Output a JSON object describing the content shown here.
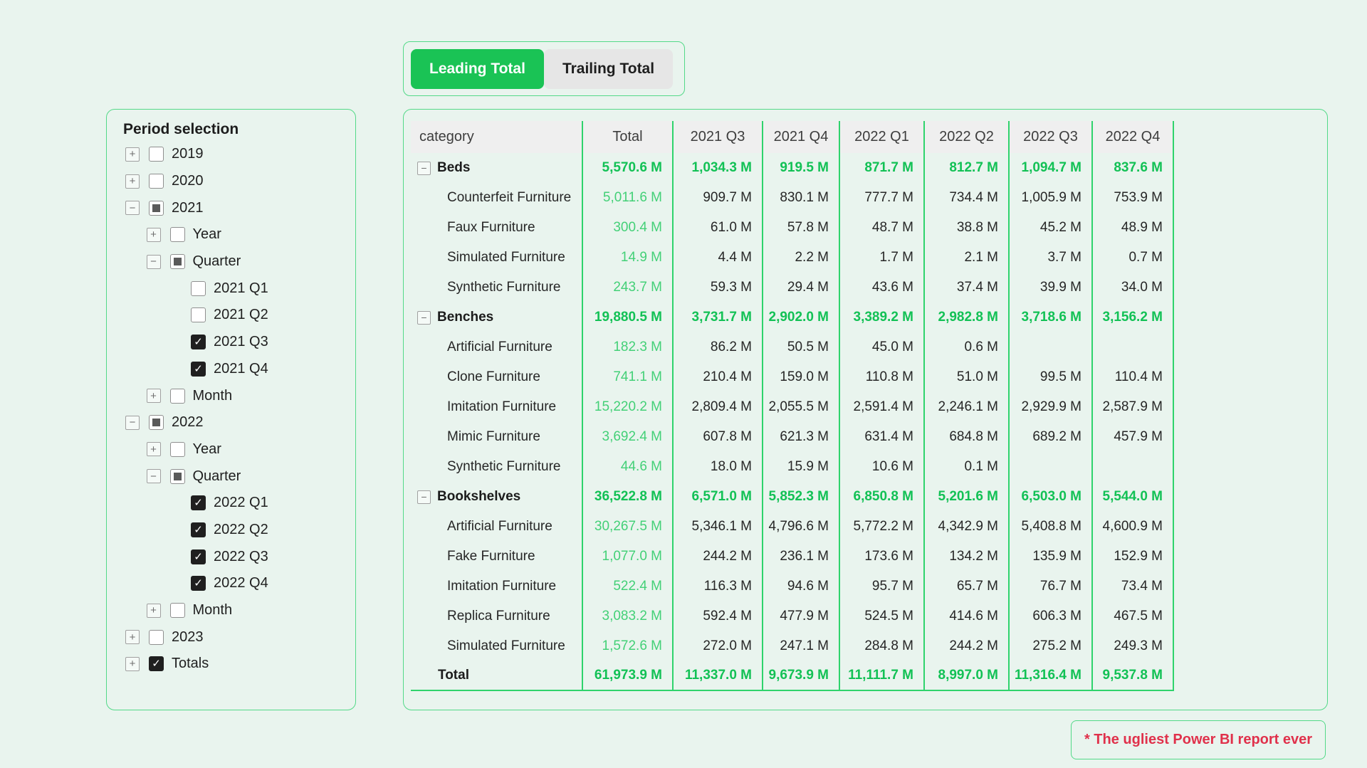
{
  "page": {
    "note": "* The ugliest Power BI report ever",
    "colors": {
      "background": "#e9f4ee",
      "accent": "#1ac355",
      "grid": "#2fd36c",
      "green_bold": "#12c155",
      "green_light": "#43d077",
      "red": "#e0314b",
      "border": "#53d988",
      "header_bg": "#efefef",
      "checked": "#1f1f1f"
    }
  },
  "toggle": {
    "buttons": [
      {
        "label": "Leading Total",
        "active": true
      },
      {
        "label": "Trailing Total",
        "active": false
      }
    ]
  },
  "period_panel": {
    "title": "Period selection",
    "items": [
      {
        "level": 0,
        "expander": "plus",
        "checkbox": "unchecked",
        "label": "2019"
      },
      {
        "level": 0,
        "expander": "plus",
        "checkbox": "unchecked",
        "label": "2020"
      },
      {
        "level": 0,
        "expander": "minus",
        "checkbox": "indeterminate",
        "label": "2021"
      },
      {
        "level": 1,
        "expander": "plus",
        "checkbox": "unchecked",
        "label": "Year"
      },
      {
        "level": 1,
        "expander": "minus",
        "checkbox": "indeterminate",
        "label": "Quarter"
      },
      {
        "level": 2,
        "expander": null,
        "checkbox": "unchecked",
        "label": "2021 Q1"
      },
      {
        "level": 2,
        "expander": null,
        "checkbox": "unchecked",
        "label": "2021 Q2"
      },
      {
        "level": 2,
        "expander": null,
        "checkbox": "checked",
        "label": "2021 Q3"
      },
      {
        "level": 2,
        "expander": null,
        "checkbox": "checked",
        "label": "2021 Q4"
      },
      {
        "level": 1,
        "expander": "plus",
        "checkbox": "unchecked",
        "label": "Month"
      },
      {
        "level": 0,
        "expander": "minus",
        "checkbox": "indeterminate",
        "label": "2022"
      },
      {
        "level": 1,
        "expander": "plus",
        "checkbox": "unchecked",
        "label": "Year"
      },
      {
        "level": 1,
        "expander": "minus",
        "checkbox": "indeterminate",
        "label": "Quarter"
      },
      {
        "level": 2,
        "expander": null,
        "checkbox": "checked",
        "label": "2022 Q1"
      },
      {
        "level": 2,
        "expander": null,
        "checkbox": "checked",
        "label": "2022 Q2"
      },
      {
        "level": 2,
        "expander": null,
        "checkbox": "checked",
        "label": "2022 Q3"
      },
      {
        "level": 2,
        "expander": null,
        "checkbox": "checked",
        "label": "2022 Q4"
      },
      {
        "level": 1,
        "expander": "plus",
        "checkbox": "unchecked",
        "label": "Month"
      },
      {
        "level": 0,
        "expander": "plus",
        "checkbox": "unchecked",
        "label": "2023"
      },
      {
        "level": 0,
        "expander": "plus",
        "checkbox": "checked",
        "label": "Totals"
      }
    ]
  },
  "table": {
    "columns": [
      "category",
      "Total",
      "2021 Q3",
      "2021 Q4",
      "2022 Q1",
      "2022 Q2",
      "2022 Q3",
      "2022 Q4"
    ],
    "rows": [
      {
        "type": "group",
        "label": "Beds",
        "values": [
          "5,570.6 M",
          "1,034.3 M",
          "919.5 M",
          "871.7 M",
          "812.7 M",
          "1,094.7 M",
          "837.6 M"
        ]
      },
      {
        "type": "item",
        "label": "Counterfeit Furniture",
        "values": [
          "5,011.6 M",
          "909.7 M",
          "830.1 M",
          "777.7 M",
          "734.4 M",
          "1,005.9 M",
          "753.9 M"
        ]
      },
      {
        "type": "item",
        "label": "Faux Furniture",
        "values": [
          "300.4 M",
          "61.0 M",
          "57.8 M",
          "48.7 M",
          "38.8 M",
          "45.2 M",
          "48.9 M"
        ]
      },
      {
        "type": "item",
        "label": "Simulated Furniture",
        "values": [
          "14.9 M",
          "4.4 M",
          "2.2 M",
          "1.7 M",
          "2.1 M",
          "3.7 M",
          "0.7 M"
        ]
      },
      {
        "type": "item",
        "label": "Synthetic Furniture",
        "values": [
          "243.7 M",
          "59.3 M",
          "29.4 M",
          "43.6 M",
          "37.4 M",
          "39.9 M",
          "34.0 M"
        ]
      },
      {
        "type": "group",
        "label": "Benches",
        "values": [
          "19,880.5 M",
          "3,731.7 M",
          "2,902.0 M",
          "3,389.2 M",
          "2,982.8 M",
          "3,718.6 M",
          "3,156.2 M"
        ]
      },
      {
        "type": "item",
        "label": "Artificial Furniture",
        "values": [
          "182.3 M",
          "86.2 M",
          "50.5 M",
          "45.0 M",
          "0.6 M",
          "",
          ""
        ]
      },
      {
        "type": "item",
        "label": "Clone Furniture",
        "values": [
          "741.1 M",
          "210.4 M",
          "159.0 M",
          "110.8 M",
          "51.0 M",
          "99.5 M",
          "110.4 M"
        ]
      },
      {
        "type": "item",
        "label": "Imitation Furniture",
        "values": [
          "15,220.2 M",
          "2,809.4 M",
          "2,055.5 M",
          "2,591.4 M",
          "2,246.1 M",
          "2,929.9 M",
          "2,587.9 M"
        ]
      },
      {
        "type": "item",
        "label": "Mimic Furniture",
        "values": [
          "3,692.4 M",
          "607.8 M",
          "621.3 M",
          "631.4 M",
          "684.8 M",
          "689.2 M",
          "457.9 M"
        ]
      },
      {
        "type": "item",
        "label": "Synthetic Furniture",
        "values": [
          "44.6 M",
          "18.0 M",
          "15.9 M",
          "10.6 M",
          "0.1 M",
          "",
          ""
        ]
      },
      {
        "type": "group",
        "label": "Bookshelves",
        "values": [
          "36,522.8 M",
          "6,571.0 M",
          "5,852.3 M",
          "6,850.8 M",
          "5,201.6 M",
          "6,503.0 M",
          "5,544.0 M"
        ]
      },
      {
        "type": "item",
        "label": "Artificial Furniture",
        "values": [
          "30,267.5 M",
          "5,346.1 M",
          "4,796.6 M",
          "5,772.2 M",
          "4,342.9 M",
          "5,408.8 M",
          "4,600.9 M"
        ]
      },
      {
        "type": "item",
        "label": "Fake Furniture",
        "values": [
          "1,077.0 M",
          "244.2 M",
          "236.1 M",
          "173.6 M",
          "134.2 M",
          "135.9 M",
          "152.9 M"
        ]
      },
      {
        "type": "item",
        "label": "Imitation Furniture",
        "values": [
          "522.4 M",
          "116.3 M",
          "94.6 M",
          "95.7 M",
          "65.7 M",
          "76.7 M",
          "73.4 M"
        ]
      },
      {
        "type": "item",
        "label": "Replica Furniture",
        "values": [
          "3,083.2 M",
          "592.4 M",
          "477.9 M",
          "524.5 M",
          "414.6 M",
          "606.3 M",
          "467.5 M"
        ]
      },
      {
        "type": "item",
        "label": "Simulated Furniture",
        "values": [
          "1,572.6 M",
          "272.0 M",
          "247.1 M",
          "284.8 M",
          "244.2 M",
          "275.2 M",
          "249.3 M"
        ]
      },
      {
        "type": "total",
        "label": "Total",
        "values": [
          "61,973.9 M",
          "11,337.0 M",
          "9,673.9 M",
          "11,111.7 M",
          "8,997.0 M",
          "11,316.4 M",
          "9,537.8 M"
        ]
      }
    ]
  }
}
